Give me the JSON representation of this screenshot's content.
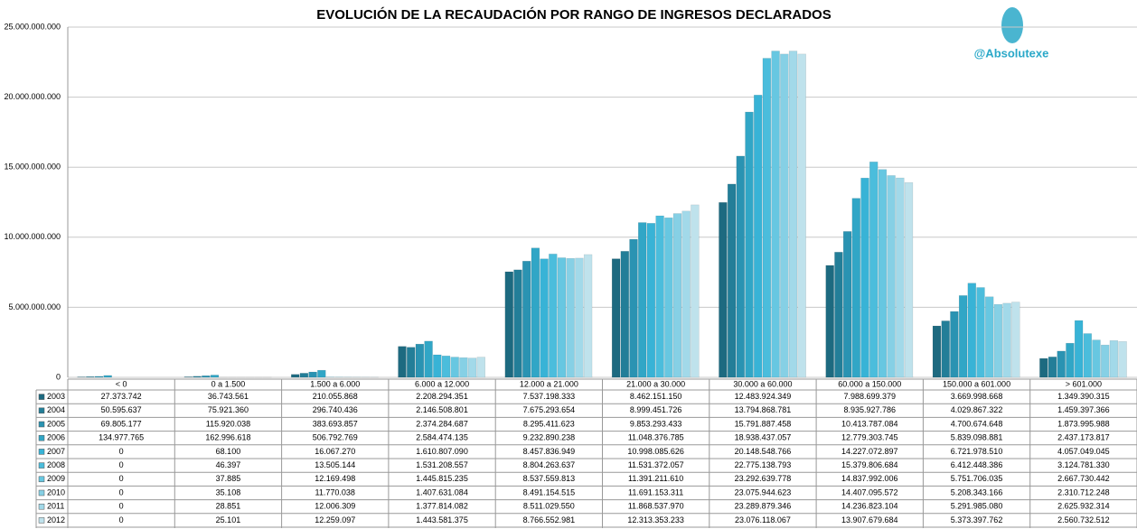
{
  "chart_data": {
    "type": "bar",
    "title": "EVOLUCIÓN DE LA RECAUDACIÓN POR RANGO DE INGRESOS DECLARADOS",
    "annotations": [
      "@Absolutexe"
    ],
    "categories": [
      "< 0",
      "0 a 1.500",
      "1.500 a 6.000",
      "6.000 a 12.000",
      "12.000 a 21.000",
      "21.000 a 30.000",
      "30.000 a 60.000",
      "60.000 a 150.000",
      "150.000 a 601.000",
      "> 601.000"
    ],
    "ylim": [
      0,
      25000000000
    ],
    "yticks": [
      0,
      {
        "value": 5000000000,
        "label": "5.000.000.000"
      },
      {
        "value": 10000000000,
        "label": "10.000.000.000"
      },
      {
        "value": 15000000000,
        "label": "15.000.000.000"
      },
      {
        "value": 20000000000,
        "label": "20.000.000.000"
      },
      {
        "value": 25000000000,
        "label": "25.000.000.000"
      }
    ],
    "grid": true,
    "series": [
      {
        "name": "2003",
        "color": "#1d6a80",
        "values": [
          27373742,
          36743561,
          210055868,
          2208294351,
          7537198333,
          8462151150,
          12483924349,
          7988699379,
          3669998668,
          1349390315
        ],
        "value_labels": [
          "27.373.742",
          "36.743.561",
          "210.055.868",
          "2.208.294.351",
          "7.537.198.333",
          "8.462.151.150",
          "12.483.924.349",
          "7.988.699.379",
          "3.669.998.668",
          "1.349.390.315"
        ]
      },
      {
        "name": "2004",
        "color": "#237e98",
        "values": [
          50595637,
          75921360,
          296740436,
          2146508801,
          7675293654,
          8999451726,
          13794868781,
          8935927786,
          4029867322,
          1459397366
        ],
        "value_labels": [
          "50.595.637",
          "75.921.360",
          "296.740.436",
          "2.146.508.801",
          "7.675.293.654",
          "8.999.451.726",
          "13.794.868.781",
          "8.935.927.786",
          "4.029.867.322",
          "1.459.397.366"
        ]
      },
      {
        "name": "2005",
        "color": "#2a93b2",
        "values": [
          69805177,
          115920038,
          383693857,
          2374284687,
          8295411623,
          9853293433,
          15791887458,
          10413787084,
          4700674648,
          1873995988
        ],
        "value_labels": [
          "69.805.177",
          "115.920.038",
          "383.693.857",
          "2.374.284.687",
          "8.295.411.623",
          "9.853.293.433",
          "15.791.887.458",
          "10.413.787.084",
          "4.700.674.648",
          "1.873.995.988"
        ]
      },
      {
        "name": "2006",
        "color": "#31a6c6",
        "values": [
          134977765,
          162996618,
          506792769,
          2584474135,
          9232890238,
          11048376785,
          18938437057,
          12779303745,
          5839098881,
          2437173817
        ],
        "value_labels": [
          "134.977.765",
          "162.996.618",
          "506.792.769",
          "2.584.474.135",
          "9.232.890.238",
          "11.048.376.785",
          "18.938.437.057",
          "12.779.303.745",
          "5.839.098.881",
          "2.437.173.817"
        ]
      },
      {
        "name": "2007",
        "color": "#38b3d6",
        "values": [
          0,
          68100,
          16067270,
          1610807090,
          8457836949,
          10998085626,
          20148548766,
          14227072897,
          6721978510,
          4057049045
        ],
        "value_labels": [
          "0",
          "68.100",
          "16.067.270",
          "1.610.807.090",
          "8.457.836.949",
          "10.998.085.626",
          "20.148.548.766",
          "14.227.072.897",
          "6.721.978.510",
          "4.057.049.045"
        ]
      },
      {
        "name": "2008",
        "color": "#4bbddc",
        "values": [
          0,
          46397,
          13505144,
          1531208557,
          8804263637,
          11531372057,
          22775138793,
          15379806684,
          6412448386,
          3124781330
        ],
        "value_labels": [
          "0",
          "46.397",
          "13.505.144",
          "1.531.208.557",
          "8.804.263.637",
          "11.531.372.057",
          "22.775.138.793",
          "15.379.806.684",
          "6.412.448.386",
          "3.124.781.330"
        ]
      },
      {
        "name": "2009",
        "color": "#67c7e1",
        "values": [
          0,
          37885,
          12169498,
          1445815235,
          8537559813,
          11391211610,
          23292639778,
          14837992006,
          5751706035,
          2667730442
        ],
        "value_labels": [
          "0",
          "37.885",
          "12.169.498",
          "1.445.815.235",
          "8.537.559.813",
          "11.391.211.610",
          "23.292.639.778",
          "14.837.992.006",
          "5.751.706.035",
          "2.667.730.442"
        ]
      },
      {
        "name": "2010",
        "color": "#86d0e5",
        "values": [
          0,
          35108,
          11770038,
          1407631084,
          8491154515,
          11691153311,
          23075944623,
          14407095572,
          5208343166,
          2310712248
        ],
        "value_labels": [
          "0",
          "35.108",
          "11.770.038",
          "1.407.631.084",
          "8.491.154.515",
          "11.691.153.311",
          "23.075.944.623",
          "14.407.095.572",
          "5.208.343.166",
          "2.310.712.248"
        ]
      },
      {
        "name": "2011",
        "color": "#a2d9e9",
        "values": [
          0,
          28851,
          12006309,
          1377814082,
          8511029550,
          11868537970,
          23289879346,
          14236823104,
          5291985080,
          2625932314
        ],
        "value_labels": [
          "0",
          "28.851",
          "12.006.309",
          "1.377.814.082",
          "8.511.029.550",
          "11.868.537.970",
          "23.289.879.346",
          "14.236.823.104",
          "5.291.985.080",
          "2.625.932.314"
        ]
      },
      {
        "name": "2012",
        "color": "#bfe2ec",
        "values": [
          0,
          25101,
          12259097,
          1443581375,
          8766552981,
          12313353233,
          23076118067,
          13907679684,
          5373397762,
          2560732512
        ],
        "value_labels": [
          "0",
          "25.101",
          "12.259.097",
          "1.443.581.375",
          "8.766.552.981",
          "12.313.353.233",
          "23.076.118.067",
          "13.907.679.684",
          "5.373.397.762",
          "2.560.732.512"
        ]
      }
    ]
  }
}
